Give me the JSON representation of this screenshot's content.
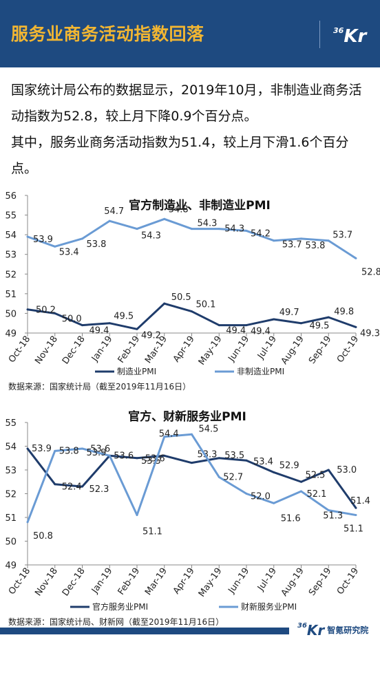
{
  "header": {
    "title": "服务业商务活动指数回落",
    "logo_num": "36",
    "logo_letter": "Kr"
  },
  "intro": {
    "line1": "国家统计局公布的数据显示，2019年10月，非制造业商务活动指数为52.8，较上月下降0.9个百分点。",
    "line2": "其中，服务业商务活动指数为51.4，较上月下滑1.6个百分点。"
  },
  "colors": {
    "header_bg": "#1e4a80",
    "title": "#f2b632",
    "series_dark": "#1f3c6b",
    "series_light": "#6a9bd4"
  },
  "chart_data": [
    {
      "type": "line",
      "title": "官方制造业、非制造业PMI",
      "categories": [
        "Oct-18",
        "Nov-18",
        "Dec-18",
        "Jan-19",
        "Feb-19",
        "Mar-19",
        "Apr-19",
        "May-19",
        "Jun-19",
        "Jul-19",
        "Aug-19",
        "Sep-19",
        "Oct-19"
      ],
      "ylim": [
        49,
        56
      ],
      "yticks": [
        "49",
        "50",
        "51",
        "52",
        "53",
        "54",
        "55",
        "56"
      ],
      "legend_position": "bottom",
      "series": [
        {
          "name": "制造业PMI",
          "values": [
            50.2,
            50.0,
            49.4,
            49.5,
            49.2,
            50.5,
            50.1,
            49.4,
            49.4,
            49.7,
            49.5,
            49.8,
            49.3
          ],
          "labels": [
            "50.2",
            "50.0",
            "49.4",
            "49.5",
            "49.2",
            "50.5",
            "50.1",
            "49.4",
            "49.4",
            "49.7",
            "49.5",
            "49.8",
            "49.3"
          ]
        },
        {
          "name": "非制造业PMI",
          "values": [
            53.9,
            53.4,
            53.8,
            54.7,
            54.3,
            54.8,
            54.3,
            54.3,
            54.2,
            53.7,
            53.8,
            53.7,
            52.8
          ],
          "labels": [
            "53.9",
            "53.4",
            "53.8",
            "54.7",
            "54.3",
            "54.8",
            "54.3",
            "54.3",
            "54.2",
            "53.7",
            "53.8",
            "53.7",
            "52.8"
          ]
        }
      ],
      "source": "数据来源：国家统计局（截至2019年11月16日）"
    },
    {
      "type": "line",
      "title": "官方、财新服务业PMI",
      "categories": [
        "Oct-18",
        "Nov-18",
        "Dec-18",
        "Jan-19",
        "Feb-19",
        "Mar-19",
        "Apr-19",
        "May-19",
        "Jun-19",
        "Jul-19",
        "Aug-19",
        "Sep-19",
        "Oct-19"
      ],
      "ylim": [
        49,
        55
      ],
      "yticks": [
        "49",
        "50",
        "51",
        "52",
        "53",
        "54",
        "55"
      ],
      "legend_position": "bottom",
      "series": [
        {
          "name": "官方服务业PMI",
          "values": [
            53.9,
            52.4,
            52.3,
            53.6,
            53.5,
            53.6,
            53.3,
            53.5,
            53.4,
            52.9,
            52.5,
            53.0,
            51.4
          ],
          "labels": [
            "53.9",
            "52.4",
            "52.3",
            "53.6",
            "53.5",
            "53.6",
            "53.3",
            "53.5",
            "53.4",
            "52.9",
            "52.5",
            "53.0",
            "51.4"
          ]
        },
        {
          "name": "财新服务业PMI",
          "values": [
            50.8,
            53.8,
            53.9,
            53.6,
            51.1,
            54.4,
            54.5,
            52.7,
            52.0,
            51.6,
            52.1,
            51.3,
            51.1
          ],
          "labels": [
            "50.8",
            "53.8",
            "53.9",
            "53.6",
            "51.1",
            "54.4",
            "54.5",
            "52.7",
            "52.0",
            "51.6",
            "52.1",
            "51.3",
            "51.1"
          ]
        }
      ],
      "source": "数据来源：国家统计局、财新网（截至2019年11月16日）"
    }
  ],
  "footer": {
    "logo_num": "36",
    "logo_letter": "Kr",
    "org": "智氪研究院"
  }
}
